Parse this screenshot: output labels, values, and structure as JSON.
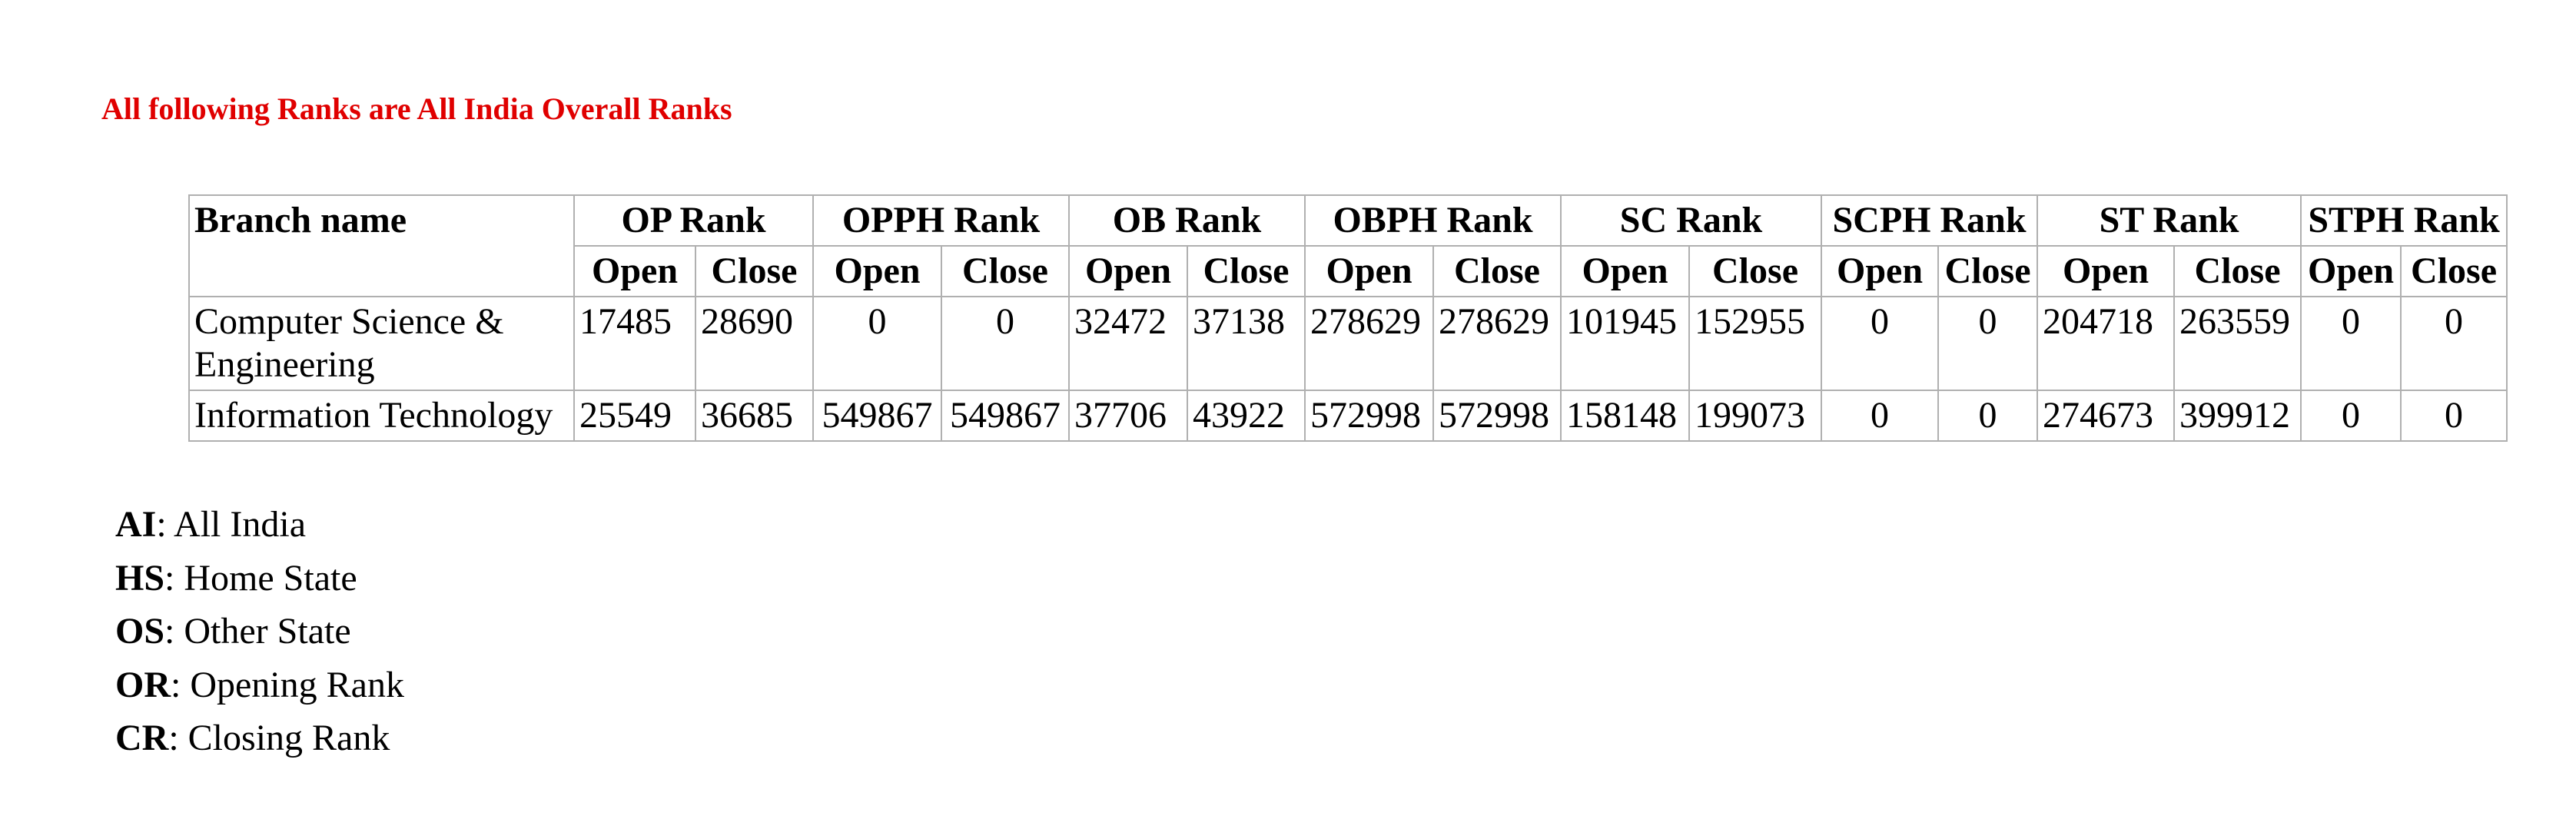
{
  "notice": "All following Ranks are All India Overall Ranks",
  "table": {
    "branch_header": "Branch name",
    "groups": [
      "OP Rank",
      "OPPH Rank",
      "OB Rank",
      "OBPH Rank",
      "SC Rank",
      "SCPH Rank",
      "ST Rank",
      "STPH Rank"
    ],
    "open_label": "Open",
    "close_label": "Close",
    "rows": [
      {
        "branch": "Computer Science & Engineering",
        "cells": [
          "17485",
          "28690",
          "0",
          "0",
          "32472",
          "37138",
          "278629",
          "278629",
          "101945",
          "152955",
          "0",
          "0",
          "204718",
          "263559",
          "0",
          "0"
        ]
      },
      {
        "branch": "Information Technology",
        "cells": [
          "25549",
          "36685",
          "549867",
          "549867",
          "37706",
          "43922",
          "572998",
          "572998",
          "158148",
          "199073",
          "0",
          "0",
          "274673",
          "399912",
          "0",
          "0"
        ]
      }
    ]
  },
  "legend": [
    {
      "abbr": "AI",
      "text": ": All India"
    },
    {
      "abbr": "HS",
      "text": ": Home State"
    },
    {
      "abbr": "OS",
      "text": ": Other State"
    },
    {
      "abbr": "OR",
      "text": ": Opening Rank"
    },
    {
      "abbr": "CR",
      "text": ": Closing Rank"
    }
  ]
}
